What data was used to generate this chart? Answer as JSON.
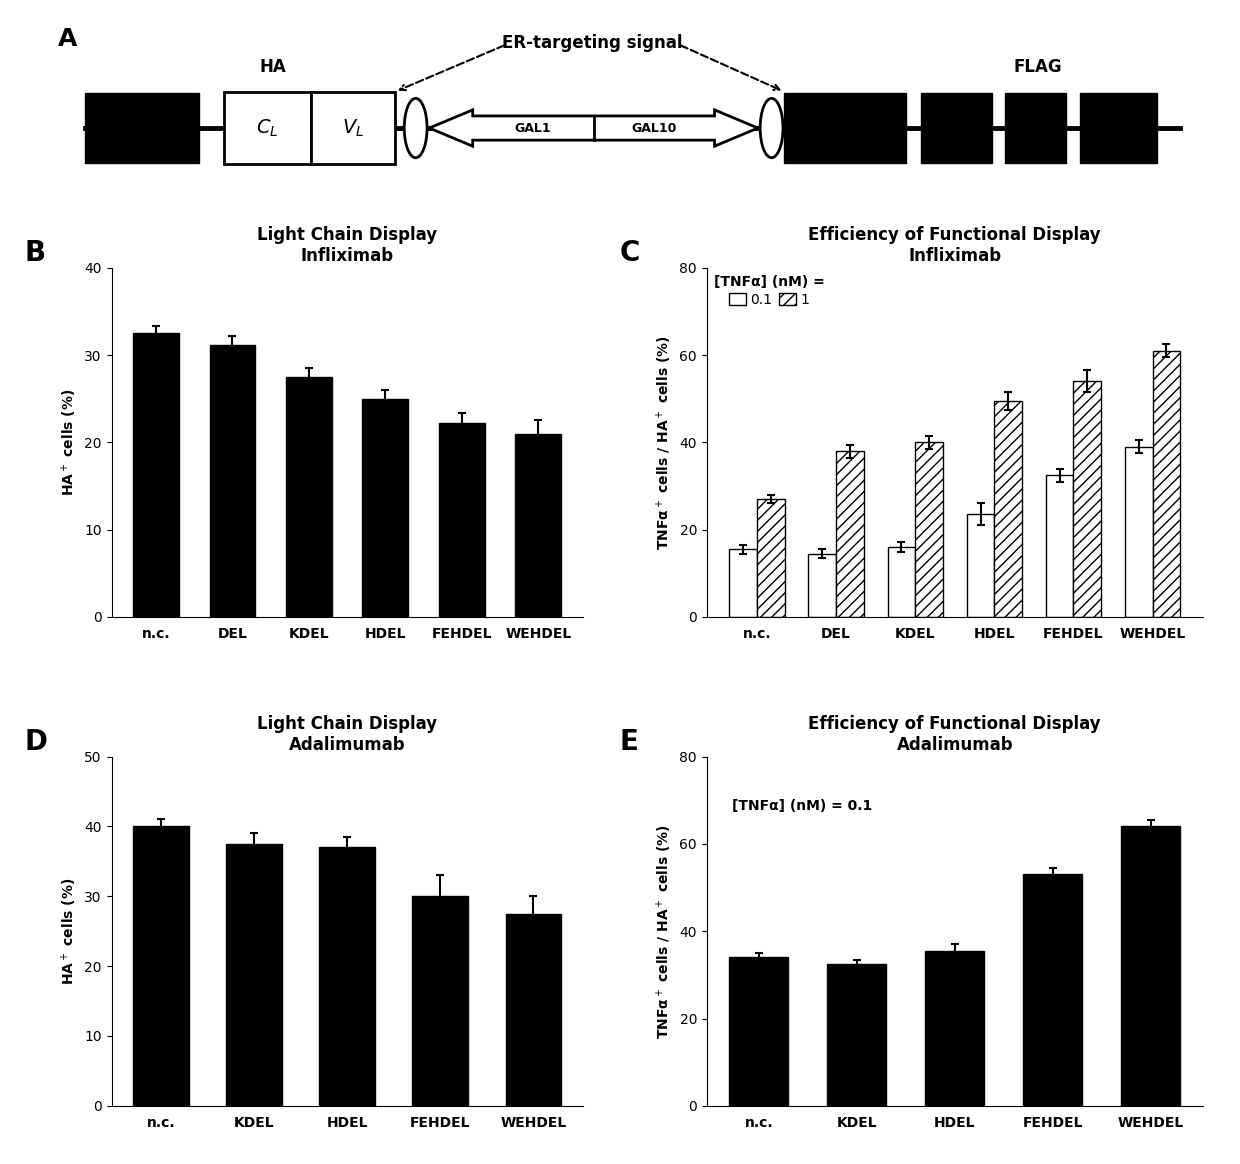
{
  "panel_B": {
    "title": "Light Chain Display\nInfliximab",
    "categories": [
      "n.c.",
      "DEL",
      "KDEL",
      "HDEL",
      "FEHDEL",
      "WEHDEL"
    ],
    "values": [
      32.5,
      31.2,
      27.5,
      25.0,
      22.2,
      21.0
    ],
    "errors": [
      0.8,
      1.0,
      1.0,
      1.0,
      1.2,
      1.5
    ],
    "ylabel": "HA$^+$ cells (%)",
    "ylim": [
      0,
      40
    ],
    "yticks": [
      0,
      10,
      20,
      30,
      40
    ]
  },
  "panel_C": {
    "title": "Efficiency of Functional Display\nInfliximab",
    "legend_text": "[TNFα] (nM) =",
    "categories": [
      "n.c.",
      "DEL",
      "KDEL",
      "HDEL",
      "FEHDEL",
      "WEHDEL"
    ],
    "values_01": [
      15.5,
      14.5,
      16.0,
      23.5,
      32.5,
      39.0
    ],
    "errors_01": [
      1.0,
      1.0,
      1.2,
      2.5,
      1.5,
      1.5
    ],
    "values_1": [
      27.0,
      38.0,
      40.0,
      49.5,
      54.0,
      61.0
    ],
    "errors_1": [
      1.0,
      1.5,
      1.5,
      2.0,
      2.5,
      1.5
    ],
    "ylabel": "TNFα$^+$ cells / HA$^+$ cells (%)",
    "ylim": [
      0,
      80
    ],
    "yticks": [
      0,
      20,
      40,
      60,
      80
    ]
  },
  "panel_D": {
    "title": "Light Chain Display\nAdalimumab",
    "categories": [
      "n.c.",
      "KDEL",
      "HDEL",
      "FEHDEL",
      "WEHDEL"
    ],
    "values": [
      40.0,
      37.5,
      37.0,
      30.0,
      27.5
    ],
    "errors": [
      1.0,
      1.5,
      1.5,
      3.0,
      2.5
    ],
    "ylabel": "HA$^+$ cells (%)",
    "ylim": [
      0,
      50
    ],
    "yticks": [
      0,
      10,
      20,
      30,
      40,
      50
    ]
  },
  "panel_E": {
    "title": "Efficiency of Functional Display\nAdalimumab",
    "legend_text": "[TNFα] (nM) = 0.1",
    "categories": [
      "n.c.",
      "KDEL",
      "HDEL",
      "FEHDEL",
      "WEHDEL"
    ],
    "values": [
      34.0,
      32.5,
      35.5,
      53.0,
      64.0
    ],
    "errors": [
      1.0,
      1.0,
      1.5,
      1.5,
      1.5
    ],
    "ylabel": "TNFα$^+$ cells / HA$^+$ cells (%)",
    "ylim": [
      0,
      80
    ],
    "yticks": [
      0,
      20,
      40,
      60,
      80
    ]
  }
}
